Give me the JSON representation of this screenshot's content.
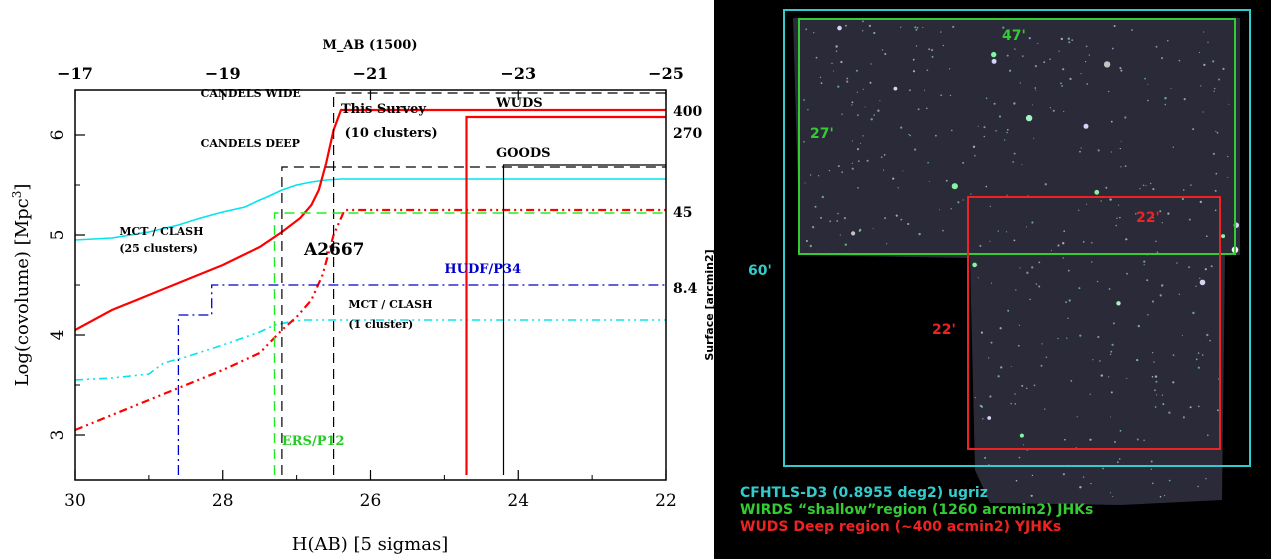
{
  "chart_data": {
    "type": "line",
    "xlabel": "H(AB) [5 sigmas]",
    "ylabel": "Log(covolume) [Mpc",
    "ylabel_sup": "3",
    "ylabel_end": "]",
    "top_axis_label": "M_AB (1500)",
    "right_axis_label": "Surface [arcmin2]",
    "xlim": [
      30,
      22
    ],
    "ylim": [
      2.55,
      6.45
    ],
    "x_ticks": [
      30,
      28,
      26,
      24,
      22
    ],
    "x_tick_labels": [
      "30",
      "28",
      "26",
      "24",
      "22"
    ],
    "y_ticks": [
      3,
      4,
      5,
      6
    ],
    "y_tick_labels": [
      "3",
      "4",
      "5",
      "6"
    ],
    "top_ticks": [
      {
        "label": "−17",
        "h": 30.0
      },
      {
        "label": "−19",
        "h": 28.0
      },
      {
        "label": "−21",
        "h": 26.0
      },
      {
        "label": "−23",
        "h": 24.0
      },
      {
        "label": "−25",
        "h": 22.0
      }
    ],
    "right_labels": [
      {
        "text": "400",
        "y": 6.24
      },
      {
        "text": "270",
        "y": 6.02
      },
      {
        "text": "45",
        "y": 5.23
      },
      {
        "text": "8.4",
        "y": 4.47
      }
    ],
    "annotations": [
      {
        "text": "CANDELS WIDE",
        "x": 28.3,
        "y": 6.38,
        "color": "#000000",
        "size": "small"
      },
      {
        "text": "CANDELS DEEP",
        "x": 28.3,
        "y": 5.88,
        "color": "#000000",
        "size": "small"
      },
      {
        "text": "This Survey",
        "x": 26.4,
        "y": 6.22,
        "color": "#000000",
        "size": "medium"
      },
      {
        "text": "(10 clusters)",
        "x": 26.35,
        "y": 5.98,
        "color": "#000000",
        "size": "medium"
      },
      {
        "text": "WUDS",
        "x": 24.3,
        "y": 6.28,
        "color": "#000000",
        "size": "medium"
      },
      {
        "text": "GOODS",
        "x": 24.3,
        "y": 5.78,
        "color": "#000000",
        "size": "medium"
      },
      {
        "text": "MCT / CLASH",
        "x": 29.4,
        "y": 5.0,
        "color": "#000000",
        "size": "small"
      },
      {
        "text": "(25 clusters)",
        "x": 29.4,
        "y": 4.83,
        "color": "#000000",
        "size": "small"
      },
      {
        "text": "A2667",
        "x": 26.9,
        "y": 4.8,
        "color": "#000000",
        "size": "large"
      },
      {
        "text": "HUDF/P34",
        "x": 25.0,
        "y": 4.62,
        "color": "#0000cc",
        "size": "medium"
      },
      {
        "text": "MCT / CLASH",
        "x": 26.3,
        "y": 4.27,
        "color": "#000000",
        "size": "small"
      },
      {
        "text": "(1 cluster)",
        "x": 26.3,
        "y": 4.07,
        "color": "#000000",
        "size": "small"
      },
      {
        "text": "ERS/P12",
        "x": 27.2,
        "y": 2.9,
        "color": "#22cc22",
        "size": "medium"
      }
    ],
    "series": [
      {
        "color": "#00e5ee",
        "dash": "",
        "width": 1.6,
        "points": [
          [
            30,
            4.95
          ],
          [
            29.5,
            4.97
          ],
          [
            29,
            5.03
          ],
          [
            28.6,
            5.1
          ],
          [
            28.3,
            5.17
          ],
          [
            28,
            5.23
          ],
          [
            27.7,
            5.28
          ],
          [
            27.5,
            5.35
          ],
          [
            27.4,
            5.38
          ],
          [
            27.2,
            5.45
          ],
          [
            27.0,
            5.5
          ],
          [
            26.8,
            5.53
          ],
          [
            26.6,
            5.55
          ],
          [
            26.4,
            5.56
          ],
          [
            22,
            5.56
          ]
        ]
      },
      {
        "color": "#ff0000",
        "dash": "",
        "width": 2.2,
        "points": [
          [
            30,
            4.05
          ],
          [
            29.5,
            4.25
          ],
          [
            29,
            4.4
          ],
          [
            28.5,
            4.55
          ],
          [
            28,
            4.7
          ],
          [
            27.5,
            4.88
          ],
          [
            27.2,
            5.03
          ],
          [
            26.95,
            5.17
          ],
          [
            26.8,
            5.3
          ],
          [
            26.7,
            5.45
          ],
          [
            26.6,
            5.72
          ],
          [
            26.5,
            6.05
          ],
          [
            26.4,
            6.25
          ],
          [
            22,
            6.25
          ]
        ]
      },
      {
        "color": "#00e5ee",
        "dash": "8,4,2,4,2,4",
        "width": 1.6,
        "points": [
          [
            30,
            3.55
          ],
          [
            29.5,
            3.57
          ],
          [
            29.0,
            3.61
          ],
          [
            28.8,
            3.72
          ],
          [
            28.5,
            3.78
          ],
          [
            28.0,
            3.9
          ],
          [
            27.5,
            4.03
          ],
          [
            27.3,
            4.1
          ],
          [
            27.1,
            4.13
          ],
          [
            26.9,
            4.15
          ],
          [
            22,
            4.15
          ]
        ]
      },
      {
        "color": "#ff0000",
        "dash": "8,4,2,4,2,4",
        "width": 2.2,
        "points": [
          [
            30,
            3.05
          ],
          [
            29.5,
            3.2
          ],
          [
            29,
            3.35
          ],
          [
            28.5,
            3.5
          ],
          [
            28,
            3.65
          ],
          [
            27.5,
            3.82
          ],
          [
            27.2,
            4.05
          ],
          [
            27.0,
            4.18
          ],
          [
            26.8,
            4.35
          ],
          [
            26.65,
            4.6
          ],
          [
            26.5,
            5.0
          ],
          [
            26.35,
            5.25
          ],
          [
            22,
            5.25
          ]
        ]
      },
      {
        "color": "#000000",
        "dash": "10,6",
        "width": 1.2,
        "points": [
          [
            27.2,
            2.6
          ],
          [
            27.2,
            5.68
          ],
          [
            22,
            5.68
          ]
        ]
      },
      {
        "color": "#000000",
        "dash": "10,6",
        "width": 1.2,
        "points": [
          [
            26.5,
            2.6
          ],
          [
            26.5,
            6.42
          ],
          [
            22,
            6.42
          ]
        ]
      },
      {
        "color": "#22ee22",
        "dash": "10,6",
        "width": 1.4,
        "points": [
          [
            27.3,
            2.6
          ],
          [
            27.3,
            5.22
          ],
          [
            22,
            5.22
          ]
        ]
      },
      {
        "color": "#0000cc",
        "dash": "10,4,2,4",
        "width": 1.3,
        "points": [
          [
            28.6,
            2.6
          ],
          [
            28.6,
            4.2
          ],
          [
            28.15,
            4.2
          ],
          [
            28.15,
            4.5
          ],
          [
            22,
            4.5
          ]
        ]
      },
      {
        "color": "#ff0000",
        "dash": "",
        "width": 2.2,
        "points": [
          [
            24.7,
            2.6
          ],
          [
            24.7,
            6.18
          ],
          [
            22,
            6.18
          ]
        ]
      },
      {
        "color": "#000000",
        "dash": "",
        "width": 1.2,
        "points": [
          [
            24.2,
            2.6
          ],
          [
            24.2,
            5.7
          ],
          [
            22,
            5.7
          ]
        ]
      }
    ]
  },
  "sky_image": {
    "outer_label": "60'",
    "green_top_label": "47'",
    "green_side_label": "27'",
    "red_top_label": "22'",
    "red_side_label": "22'",
    "legend": [
      {
        "text": "CFHTLS-D3 (0.8955 deg2)  ugriz",
        "color": "#33cccc"
      },
      {
        "text": "WIRDS “shallow”region  (1260 arcmin2) JHKs",
        "color": "#33cc33"
      },
      {
        "text": "WUDS Deep region (~400 acmin2) YJHKs",
        "color": "#ee2222"
      }
    ],
    "colors": {
      "outer": "#33cccc",
      "green": "#33cc33",
      "red": "#ee2222"
    }
  }
}
